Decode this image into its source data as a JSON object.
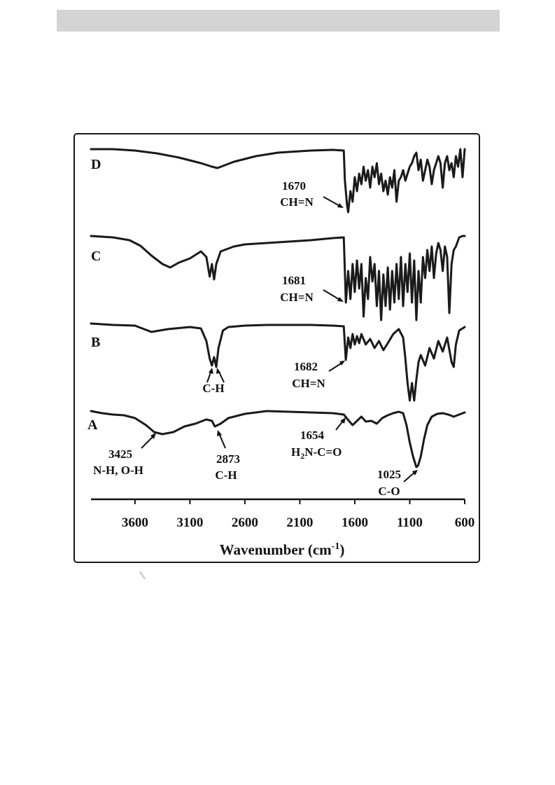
{
  "chart_data": {
    "type": "line",
    "xlabel": "Wavenumber (cm",
    "xlabel_sup": "-1",
    "xlabel_close": ")",
    "xlim": [
      4000,
      600
    ],
    "xaxis_reversed": true,
    "xticks": [
      3600,
      3100,
      2600,
      2100,
      1600,
      1100,
      600
    ],
    "series_color": "#1a1a1a",
    "series": [
      {
        "name": "A",
        "baseline": 587,
        "points": [
          [
            4000,
            0
          ],
          [
            3900,
            3
          ],
          [
            3800,
            5
          ],
          [
            3700,
            6
          ],
          [
            3600,
            10
          ],
          [
            3500,
            20
          ],
          [
            3425,
            30
          ],
          [
            3350,
            33
          ],
          [
            3250,
            30
          ],
          [
            3150,
            22
          ],
          [
            3050,
            18
          ],
          [
            2950,
            12
          ],
          [
            2900,
            14
          ],
          [
            2873,
            22
          ],
          [
            2820,
            18
          ],
          [
            2750,
            10
          ],
          [
            2600,
            4
          ],
          [
            2500,
            2
          ],
          [
            2400,
            0
          ],
          [
            2200,
            1
          ],
          [
            2000,
            2
          ],
          [
            1800,
            3
          ],
          [
            1700,
            5
          ],
          [
            1654,
            14
          ],
          [
            1620,
            20
          ],
          [
            1580,
            14
          ],
          [
            1540,
            8
          ],
          [
            1500,
            15
          ],
          [
            1450,
            14
          ],
          [
            1400,
            18
          ],
          [
            1350,
            10
          ],
          [
            1300,
            6
          ],
          [
            1250,
            3
          ],
          [
            1200,
            1
          ],
          [
            1160,
            3
          ],
          [
            1130,
            20
          ],
          [
            1100,
            45
          ],
          [
            1070,
            65
          ],
          [
            1040,
            80
          ],
          [
            1025,
            78
          ],
          [
            1000,
            65
          ],
          [
            970,
            40
          ],
          [
            940,
            20
          ],
          [
            900,
            8
          ],
          [
            850,
            4
          ],
          [
            800,
            3
          ],
          [
            750,
            5
          ],
          [
            700,
            8
          ],
          [
            650,
            5
          ],
          [
            600,
            2
          ]
        ]
      },
      {
        "name": "B",
        "baseline": 462,
        "points": [
          [
            4000,
            0
          ],
          [
            3800,
            2
          ],
          [
            3600,
            3
          ],
          [
            3450,
            12
          ],
          [
            3300,
            8
          ],
          [
            3100,
            5
          ],
          [
            3000,
            7
          ],
          [
            2950,
            25
          ],
          [
            2920,
            50
          ],
          [
            2900,
            60
          ],
          [
            2880,
            48
          ],
          [
            2860,
            62
          ],
          [
            2840,
            35
          ],
          [
            2800,
            10
          ],
          [
            2750,
            5
          ],
          [
            2600,
            3
          ],
          [
            2400,
            2
          ],
          [
            2000,
            2
          ],
          [
            1800,
            3
          ],
          [
            1700,
            4
          ],
          [
            1682,
            52
          ],
          [
            1660,
            20
          ],
          [
            1640,
            35
          ],
          [
            1620,
            15
          ],
          [
            1600,
            30
          ],
          [
            1580,
            18
          ],
          [
            1560,
            28
          ],
          [
            1540,
            15
          ],
          [
            1500,
            30
          ],
          [
            1460,
            22
          ],
          [
            1420,
            35
          ],
          [
            1380,
            25
          ],
          [
            1340,
            38
          ],
          [
            1300,
            28
          ],
          [
            1250,
            15
          ],
          [
            1200,
            8
          ],
          [
            1160,
            20
          ],
          [
            1140,
            50
          ],
          [
            1120,
            85
          ],
          [
            1100,
            110
          ],
          [
            1080,
            85
          ],
          [
            1060,
            110
          ],
          [
            1040,
            80
          ],
          [
            1020,
            55
          ],
          [
            1000,
            45
          ],
          [
            960,
            60
          ],
          [
            920,
            35
          ],
          [
            880,
            50
          ],
          [
            840,
            25
          ],
          [
            800,
            40
          ],
          [
            760,
            20
          ],
          [
            720,
            55
          ],
          [
            700,
            62
          ],
          [
            680,
            30
          ],
          [
            650,
            10
          ],
          [
            600,
            5
          ]
        ]
      },
      {
        "name": "C",
        "baseline": 337,
        "points": [
          [
            4000,
            0
          ],
          [
            3800,
            2
          ],
          [
            3650,
            6
          ],
          [
            3550,
            14
          ],
          [
            3450,
            28
          ],
          [
            3350,
            40
          ],
          [
            3280,
            45
          ],
          [
            3200,
            38
          ],
          [
            3100,
            32
          ],
          [
            3000,
            22
          ],
          [
            2950,
            30
          ],
          [
            2920,
            58
          ],
          [
            2900,
            40
          ],
          [
            2880,
            62
          ],
          [
            2860,
            40
          ],
          [
            2820,
            22
          ],
          [
            2700,
            15
          ],
          [
            2600,
            12
          ],
          [
            2400,
            10
          ],
          [
            2200,
            8
          ],
          [
            2000,
            6
          ],
          [
            1800,
            3
          ],
          [
            1700,
            2
          ],
          [
            1681,
            95
          ],
          [
            1660,
            50
          ],
          [
            1640,
            90
          ],
          [
            1620,
            40
          ],
          [
            1600,
            80
          ],
          [
            1580,
            35
          ],
          [
            1560,
            75
          ],
          [
            1540,
            40
          ],
          [
            1520,
            115
          ],
          [
            1500,
            60
          ],
          [
            1480,
            90
          ],
          [
            1460,
            30
          ],
          [
            1440,
            65
          ],
          [
            1420,
            40
          ],
          [
            1400,
            100
          ],
          [
            1380,
            50
          ],
          [
            1360,
            120
          ],
          [
            1340,
            55
          ],
          [
            1320,
            100
          ],
          [
            1300,
            45
          ],
          [
            1280,
            105
          ],
          [
            1260,
            50
          ],
          [
            1240,
            95
          ],
          [
            1220,
            40
          ],
          [
            1200,
            90
          ],
          [
            1180,
            30
          ],
          [
            1160,
            100
          ],
          [
            1140,
            40
          ],
          [
            1120,
            80
          ],
          [
            1100,
            25
          ],
          [
            1080,
            95
          ],
          [
            1060,
            35
          ],
          [
            1040,
            120
          ],
          [
            1020,
            50
          ],
          [
            1000,
            95
          ],
          [
            980,
            30
          ],
          [
            960,
            60
          ],
          [
            940,
            20
          ],
          [
            920,
            50
          ],
          [
            900,
            15
          ],
          [
            880,
            60
          ],
          [
            860,
            25
          ],
          [
            840,
            10
          ],
          [
            820,
            20
          ],
          [
            800,
            50
          ],
          [
            780,
            15
          ],
          [
            760,
            30
          ],
          [
            740,
            110
          ],
          [
            720,
            40
          ],
          [
            700,
            20
          ],
          [
            680,
            15
          ],
          [
            650,
            2
          ],
          [
            620,
            0
          ],
          [
            600,
            0
          ]
        ]
      },
      {
        "name": "D",
        "baseline": 213,
        "points": [
          [
            4000,
            0
          ],
          [
            3800,
            0
          ],
          [
            3600,
            2
          ],
          [
            3400,
            6
          ],
          [
            3200,
            12
          ],
          [
            3000,
            20
          ],
          [
            2900,
            25
          ],
          [
            2850,
            27
          ],
          [
            2800,
            24
          ],
          [
            2700,
            18
          ],
          [
            2500,
            10
          ],
          [
            2300,
            5
          ],
          [
            2000,
            2
          ],
          [
            1800,
            1
          ],
          [
            1700,
            2
          ],
          [
            1690,
            45
          ],
          [
            1670,
            80
          ],
          [
            1660,
            90
          ],
          [
            1640,
            60
          ],
          [
            1620,
            75
          ],
          [
            1600,
            40
          ],
          [
            1580,
            60
          ],
          [
            1560,
            35
          ],
          [
            1540,
            50
          ],
          [
            1520,
            25
          ],
          [
            1500,
            45
          ],
          [
            1480,
            30
          ],
          [
            1460,
            55
          ],
          [
            1440,
            25
          ],
          [
            1420,
            40
          ],
          [
            1400,
            20
          ],
          [
            1380,
            50
          ],
          [
            1360,
            35
          ],
          [
            1340,
            60
          ],
          [
            1320,
            45
          ],
          [
            1300,
            65
          ],
          [
            1280,
            40
          ],
          [
            1260,
            55
          ],
          [
            1240,
            30
          ],
          [
            1220,
            75
          ],
          [
            1200,
            45
          ],
          [
            1180,
            40
          ],
          [
            1160,
            30
          ],
          [
            1140,
            45
          ],
          [
            1120,
            35
          ],
          [
            1100,
            25
          ],
          [
            1080,
            20
          ],
          [
            1060,
            10
          ],
          [
            1040,
            5
          ],
          [
            1020,
            30
          ],
          [
            1000,
            15
          ],
          [
            980,
            45
          ],
          [
            960,
            30
          ],
          [
            940,
            15
          ],
          [
            920,
            25
          ],
          [
            900,
            50
          ],
          [
            880,
            30
          ],
          [
            860,
            20
          ],
          [
            840,
            10
          ],
          [
            820,
            20
          ],
          [
            800,
            55
          ],
          [
            780,
            20
          ],
          [
            760,
            10
          ],
          [
            740,
            30
          ],
          [
            720,
            20
          ],
          [
            700,
            40
          ],
          [
            680,
            10
          ],
          [
            660,
            25
          ],
          [
            640,
            0
          ],
          [
            620,
            40
          ],
          [
            600,
            0
          ]
        ]
      }
    ],
    "series_labels": [
      "A",
      "B",
      "C",
      "D"
    ],
    "annotations": [
      {
        "lines": [
          "1670",
          "CH=N"
        ]
      },
      {
        "lines": [
          "1681",
          "CH=N"
        ]
      },
      {
        "lines": [
          "C-H"
        ]
      },
      {
        "lines": [
          "1682",
          "CH=N"
        ]
      },
      {
        "lines": [
          "3425",
          "N-H, O-H"
        ]
      },
      {
        "lines": [
          "2873",
          "C-H"
        ]
      },
      {
        "lines": [
          "1654",
          "H",
          "2",
          "N-C=O"
        ]
      },
      {
        "lines": [
          "1025",
          "C-O"
        ]
      }
    ]
  }
}
